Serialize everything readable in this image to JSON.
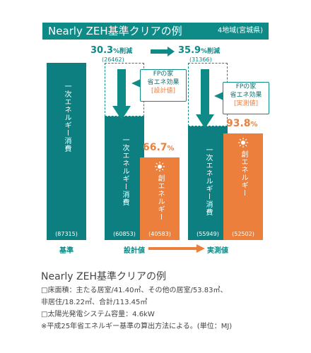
{
  "header": {
    "title": "Nearly ZEH基準クリアの例",
    "region": "4地域(宮城県)"
  },
  "reductions": [
    {
      "pct": "30.3",
      "unit": "%削減",
      "amount": "(26462)"
    },
    {
      "pct": "35.9",
      "unit": "%削減",
      "amount": "(31366)"
    }
  ],
  "callouts": {
    "design": {
      "line1": "FPの家",
      "line2": "省エネ効果",
      "line3": "[設計値]"
    },
    "actual": {
      "line1": "FPの家",
      "line2": "省エネ効果",
      "line3": "[実測値]"
    }
  },
  "bar_labels": {
    "consumption": "一次エネルギー消費",
    "creation": "創エネルギー"
  },
  "x_labels": {
    "base": "基準",
    "design": "設計値",
    "actual": "実測値"
  },
  "footnote": {
    "title": "Nearly ZEH基準クリアの例",
    "line1": "□床面積：主たる居室/41.40㎡、その他の居室/53.83㎡、",
    "line2": "非居住/18.22㎡、合計/113.45㎡",
    "line3": "□太陽光発電システム容量：4.6kW",
    "line4": "※平成25年省エネルギー基準の算出方法による。(単位：MJ)"
  },
  "colors": {
    "teal": "#0e7f80",
    "orange": "#ec7f3b"
  },
  "chart_data": {
    "type": "bar",
    "unit": "MJ",
    "categories": [
      "基準",
      "設計値",
      "設計値",
      "実測値",
      "実測値"
    ],
    "bars": [
      {
        "category": "基準",
        "kind": "一次エネルギー消費",
        "value": 87315,
        "label": "(87315)"
      },
      {
        "category": "設計値",
        "kind": "一次エネルギー消費",
        "value": 60853,
        "label": "(60853)"
      },
      {
        "category": "設計値",
        "kind": "創エネルギー",
        "value": 40583,
        "label": "(40583)",
        "pct": "66.7",
        "pct_unit": "%"
      },
      {
        "category": "実測値",
        "kind": "一次エネルギー消費",
        "value": 55949,
        "label": "(55949)"
      },
      {
        "category": "実測値",
        "kind": "創エネルギー",
        "value": 52502,
        "label": "(52502)",
        "pct": "93.8",
        "pct_unit": "%"
      }
    ]
  }
}
